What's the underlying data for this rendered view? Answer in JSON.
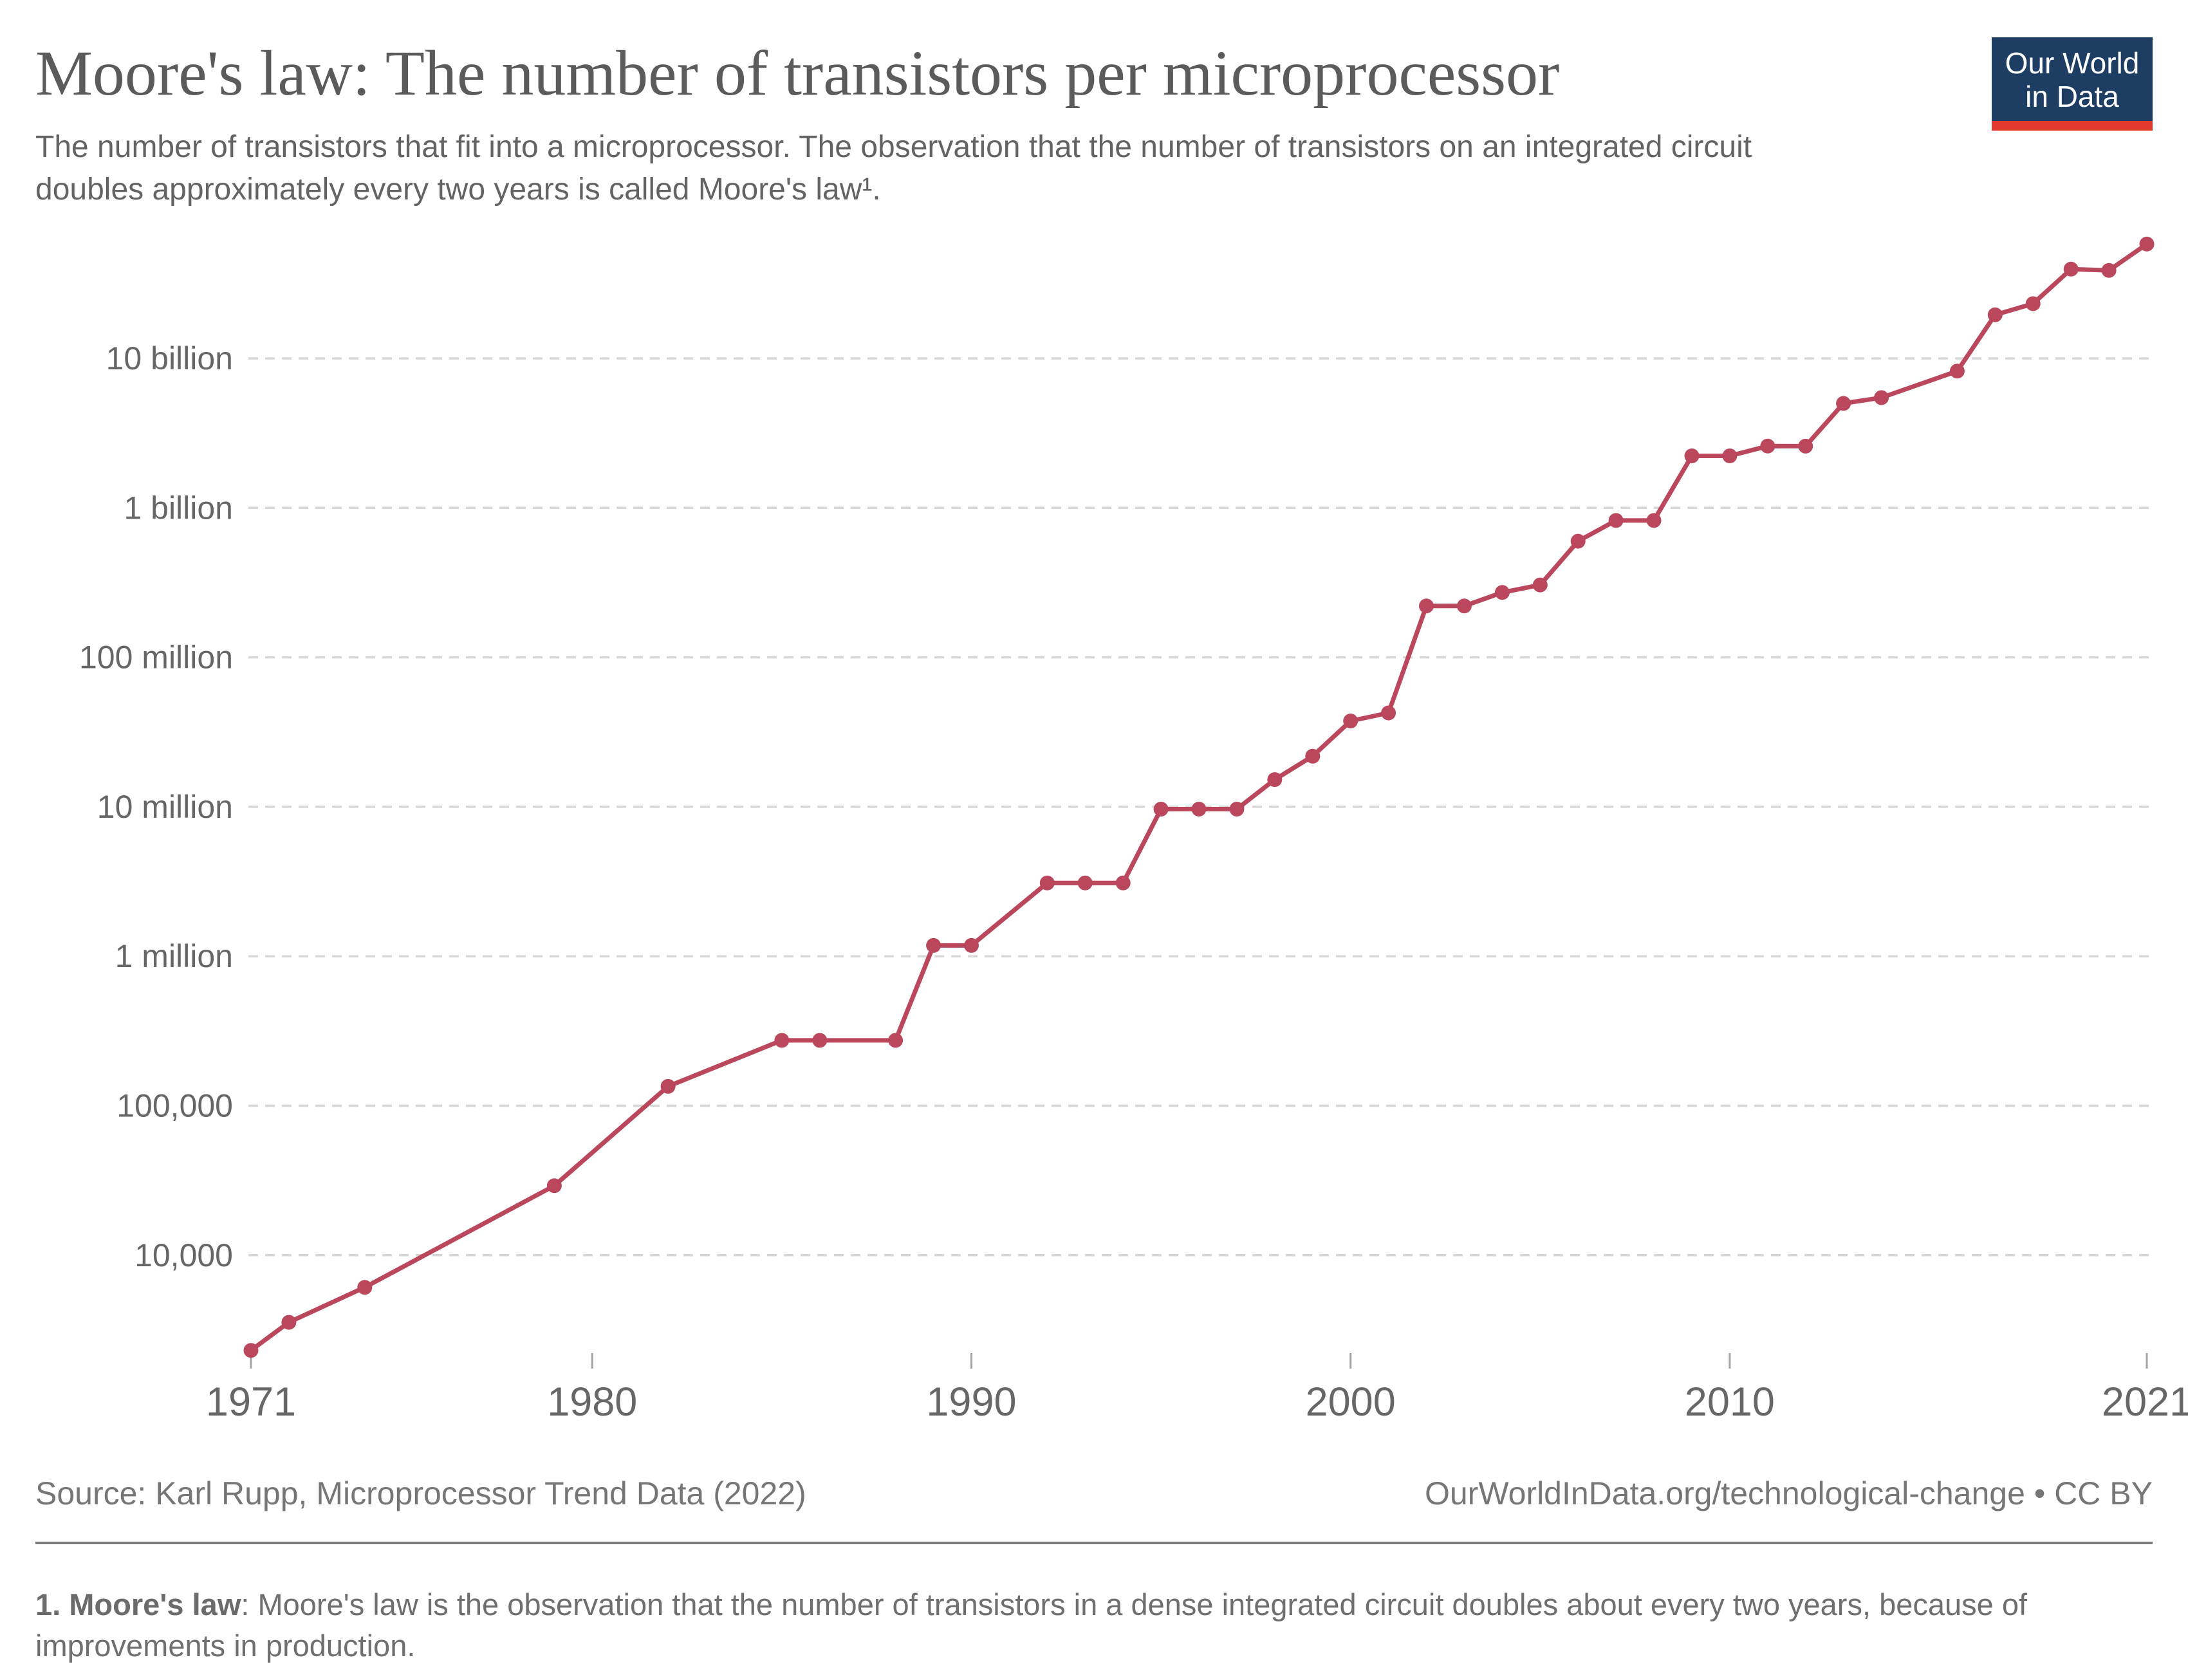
{
  "header": {
    "title": "Moore's law: The number of transistors per microprocessor",
    "subtitle": "The number of transistors that fit into a microprocessor. The observation that the number of transistors on an integrated circuit doubles approximately every two years is called Moore's law¹.",
    "logo_line1": "Our World",
    "logo_line2": "in Data"
  },
  "footer": {
    "source": "Source: Karl Rupp, Microprocessor Trend Data (2022)",
    "link": "OurWorldInData.org/technological-change • CC BY",
    "footnote_lead": "1. Moore's law",
    "footnote_rest": ": Moore's law is the observation that the number of transistors in a dense integrated circuit doubles about every two years, because of improvements in production."
  },
  "colors": {
    "line": "#bb475d",
    "grid": "#d7d7d7",
    "logo_navy": "#1d3d63",
    "logo_red": "#e23b2e"
  },
  "chart_data": {
    "type": "line",
    "title": "Moore's law: The number of transistors per microprocessor",
    "xlabel": "",
    "ylabel": "",
    "y_scale": "log10",
    "xlim": [
      1971,
      2021
    ],
    "ylim_log": [
      1000,
      10000000000
    ],
    "grid": "dashed-horizontal",
    "legend_position": "none",
    "x_ticks": [
      1971,
      1980,
      1990,
      2000,
      2010,
      2021
    ],
    "y_ticks": [
      {
        "label": "10 billion",
        "value": 10000000000
      },
      {
        "label": "1 billion",
        "value": 1000000000
      },
      {
        "label": "100 million",
        "value": 100000000
      },
      {
        "label": "10 million",
        "value": 10000000
      },
      {
        "label": "1 million",
        "value": 1000000
      },
      {
        "label": "100,000",
        "value": 100000
      },
      {
        "label": "10,000",
        "value": 10000
      }
    ],
    "series": [
      {
        "name": "Transistors per microprocessor",
        "points": [
          [
            1971,
            2308
          ],
          [
            1972,
            3555
          ],
          [
            1974,
            6098
          ],
          [
            1979,
            29163
          ],
          [
            1982,
            134753
          ],
          [
            1985,
            273842
          ],
          [
            1986,
            273842
          ],
          [
            1988,
            273842
          ],
          [
            1989,
            1181644
          ],
          [
            1990,
            1181644
          ],
          [
            1992,
            3094764
          ],
          [
            1993,
            3094764
          ],
          [
            1994,
            3094764
          ],
          [
            1995,
            9646680
          ],
          [
            1996,
            9646680
          ],
          [
            1997,
            9646680
          ],
          [
            1998,
            15209960
          ],
          [
            1999,
            21816520
          ],
          [
            2000,
            37501970
          ],
          [
            2001,
            42457760
          ],
          [
            2002,
            220573200
          ],
          [
            2003,
            220573200
          ],
          [
            2004,
            271641700
          ],
          [
            2005,
            305062500
          ],
          [
            2006,
            598244400
          ],
          [
            2007,
            823651700
          ],
          [
            2008,
            823651700
          ],
          [
            2009,
            2227920000
          ],
          [
            2010,
            2227920000
          ],
          [
            2011,
            2588550000
          ],
          [
            2012,
            2587995000
          ],
          [
            2013,
            4995021000
          ],
          [
            2014,
            5461100000
          ],
          [
            2016,
            8217600000
          ],
          [
            2017,
            19554940000
          ],
          [
            2018,
            23218500000
          ],
          [
            2019,
            39536830000
          ],
          [
            2020,
            38758140000
          ],
          [
            2021,
            58190000000
          ]
        ]
      }
    ]
  }
}
